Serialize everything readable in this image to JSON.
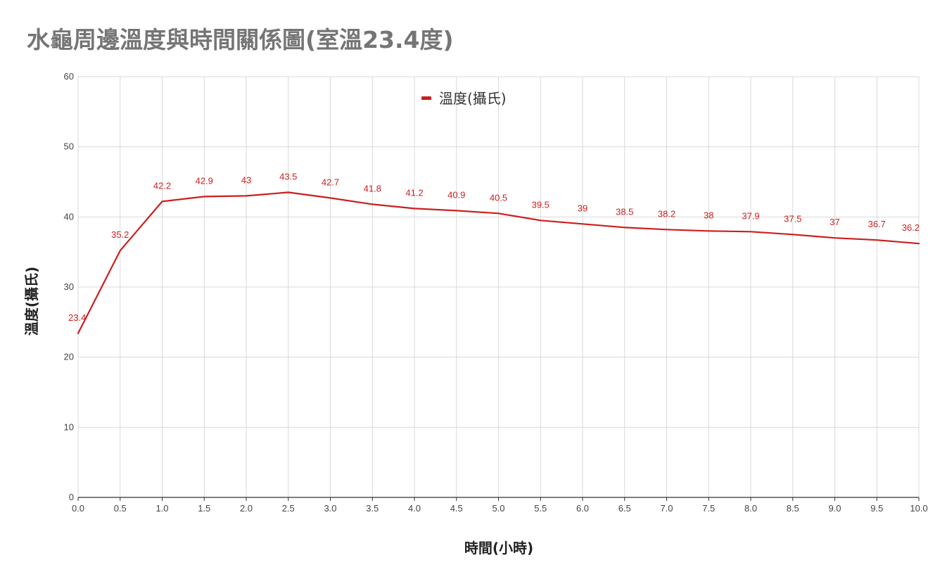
{
  "chart_data": {
    "type": "line",
    "title": "水龜周邊溫度與時間關係圖(室溫23.4度)",
    "xlabel": "時間(小時)",
    "ylabel": "溫度(攝氏)",
    "xlim": [
      0,
      10
    ],
    "ylim": [
      0,
      60
    ],
    "x_ticks": [
      "0.0",
      "0.5",
      "1.0",
      "1.5",
      "2.0",
      "2.5",
      "3.0",
      "3.5",
      "4.0",
      "4.5",
      "5.0",
      "5.5",
      "6.0",
      "6.5",
      "7.0",
      "7.5",
      "8.0",
      "8.5",
      "9.0",
      "9.5",
      "10.0"
    ],
    "y_ticks": [
      "0",
      "10",
      "20",
      "30",
      "40",
      "50",
      "60"
    ],
    "grid": true,
    "legend_position": "top-center",
    "series": [
      {
        "name": "溫度(攝氏)",
        "color": "#cc1f1f",
        "x": [
          0,
          0.5,
          1.0,
          1.5,
          2.0,
          2.5,
          3.0,
          3.5,
          4.0,
          4.5,
          5.0,
          5.5,
          6.0,
          6.5,
          7.0,
          7.5,
          8.0,
          8.5,
          9.0,
          9.5,
          10.0
        ],
        "values": [
          23.4,
          35.2,
          42.2,
          42.9,
          43,
          43.5,
          42.7,
          41.8,
          41.2,
          40.9,
          40.5,
          39.5,
          39,
          38.5,
          38.2,
          38,
          37.9,
          37.5,
          37,
          36.7,
          36.2
        ],
        "data_labels": [
          "23.4",
          "35.2",
          "42.2",
          "42.9",
          "43",
          "43.5",
          "42.7",
          "41.8",
          "41.2",
          "40.9",
          "40.5",
          "39.5",
          "39",
          "38.5",
          "38.2",
          "38",
          "37.9",
          "37.5",
          "37",
          "36.7",
          "36.2"
        ]
      }
    ]
  }
}
